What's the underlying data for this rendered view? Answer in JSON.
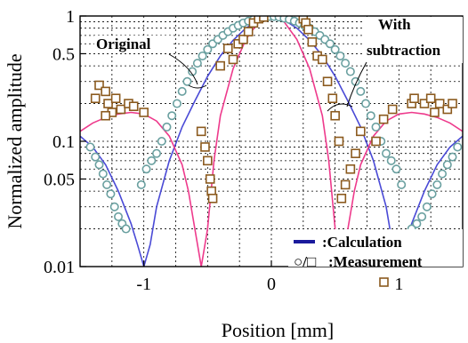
{
  "chart_data": {
    "type": "line",
    "xlabel": "Position [mm]",
    "ylabel": "Normalized amplitude",
    "xlim": [
      -1.5,
      1.5
    ],
    "ylim": [
      0.01,
      1
    ],
    "yscale": "log",
    "grid": true,
    "x_ticks": [
      {
        "value": -1,
        "label": "-1"
      },
      {
        "value": 0,
        "label": "0"
      },
      {
        "value": 1,
        "label": "1"
      }
    ],
    "y_ticks": [
      {
        "value": 1,
        "label": "1"
      },
      {
        "value": 0.5,
        "label": "0.5"
      },
      {
        "value": 0.1,
        "label": "0.1"
      },
      {
        "value": 0.05,
        "label": "0.05"
      },
      {
        "value": 0.01,
        "label": "0.01"
      }
    ],
    "annotations": {
      "original": "Original",
      "with_line1": "With",
      "with_line2": "subtraction"
    },
    "legend": {
      "calculation_label": ":Calculation",
      "measurement_symbols": "○/□",
      "measurement_label": ":Measurement",
      "placement": "bottom-right"
    },
    "colors": {
      "calculation": "#4a4ad6",
      "subtraction": "#ee3a8c",
      "circle_marker": "#6aa0a0",
      "square_marker": "#8b5a1e",
      "legend_line": "#1a1a9c"
    },
    "series": [
      {
        "key": "original_calc",
        "color": "#4a4ad6",
        "points": [
          [
            -1.5,
            0.11
          ],
          [
            -1.4,
            0.09
          ],
          [
            -1.3,
            0.065
          ],
          [
            -1.2,
            0.04
          ],
          [
            -1.1,
            0.022
          ],
          [
            -1.05,
            0.015
          ],
          [
            -1.0,
            0.01
          ],
          [
            -0.95,
            0.015
          ],
          [
            -0.9,
            0.03
          ],
          [
            -0.8,
            0.07
          ],
          [
            -0.7,
            0.13
          ],
          [
            -0.6,
            0.21
          ],
          [
            -0.5,
            0.33
          ],
          [
            -0.4,
            0.48
          ],
          [
            -0.3,
            0.64
          ],
          [
            -0.2,
            0.8
          ],
          [
            -0.1,
            0.93
          ],
          [
            0.0,
            1.0
          ],
          [
            0.1,
            0.93
          ],
          [
            0.2,
            0.8
          ],
          [
            0.3,
            0.64
          ],
          [
            0.4,
            0.48
          ],
          [
            0.5,
            0.33
          ],
          [
            0.6,
            0.21
          ],
          [
            0.7,
            0.13
          ],
          [
            0.8,
            0.07
          ],
          [
            0.9,
            0.03
          ],
          [
            0.95,
            0.015
          ],
          [
            1.0,
            0.01
          ],
          [
            1.05,
            0.015
          ],
          [
            1.1,
            0.022
          ],
          [
            1.2,
            0.04
          ],
          [
            1.3,
            0.065
          ],
          [
            1.4,
            0.09
          ],
          [
            1.5,
            0.11
          ]
        ]
      },
      {
        "key": "subtraction_calc",
        "color": "#ee3a8c",
        "points": [
          [
            -1.5,
            0.12
          ],
          [
            -1.4,
            0.14
          ],
          [
            -1.3,
            0.155
          ],
          [
            -1.2,
            0.165
          ],
          [
            -1.1,
            0.17
          ],
          [
            -1.0,
            0.165
          ],
          [
            -0.9,
            0.145
          ],
          [
            -0.8,
            0.11
          ],
          [
            -0.7,
            0.065
          ],
          [
            -0.65,
            0.04
          ],
          [
            -0.6,
            0.02
          ],
          [
            -0.55,
            0.01
          ],
          [
            -0.5,
            0.02
          ],
          [
            -0.45,
            0.07
          ],
          [
            -0.4,
            0.16
          ],
          [
            -0.3,
            0.38
          ],
          [
            -0.2,
            0.65
          ],
          [
            -0.1,
            0.9
          ],
          [
            0.0,
            1.0
          ],
          [
            0.1,
            0.9
          ],
          [
            0.2,
            0.65
          ],
          [
            0.3,
            0.38
          ],
          [
            0.4,
            0.16
          ],
          [
            0.45,
            0.07
          ],
          [
            0.5,
            0.02
          ],
          [
            0.55,
            0.01
          ],
          [
            0.6,
            0.02
          ],
          [
            0.65,
            0.04
          ],
          [
            0.7,
            0.065
          ],
          [
            0.8,
            0.11
          ],
          [
            0.9,
            0.145
          ],
          [
            1.0,
            0.165
          ],
          [
            1.1,
            0.17
          ],
          [
            1.2,
            0.165
          ],
          [
            1.3,
            0.155
          ],
          [
            1.4,
            0.14
          ],
          [
            1.5,
            0.12
          ]
        ]
      },
      {
        "key": "original_measurement",
        "marker": "circle",
        "color": "#6aa0a0",
        "points": [
          [
            -1.42,
            0.09
          ],
          [
            -1.38,
            0.075
          ],
          [
            -1.35,
            0.065
          ],
          [
            -1.32,
            0.055
          ],
          [
            -1.29,
            0.045
          ],
          [
            -1.26,
            0.038
          ],
          [
            -1.23,
            0.03
          ],
          [
            -1.2,
            0.025
          ],
          [
            -1.17,
            0.022
          ],
          [
            -1.14,
            0.02
          ],
          [
            -1.02,
            0.045
          ],
          [
            -0.98,
            0.06
          ],
          [
            -0.94,
            0.07
          ],
          [
            -0.9,
            0.08
          ],
          [
            -0.86,
            0.1
          ],
          [
            -0.82,
            0.13
          ],
          [
            -0.78,
            0.16
          ],
          [
            -0.74,
            0.2
          ],
          [
            -0.7,
            0.25
          ],
          [
            -0.66,
            0.3
          ],
          [
            -0.62,
            0.36
          ],
          [
            -0.58,
            0.42
          ],
          [
            -0.54,
            0.48
          ],
          [
            -0.5,
            0.54
          ],
          [
            -0.46,
            0.6
          ],
          [
            -0.42,
            0.65
          ],
          [
            -0.38,
            0.7
          ],
          [
            -0.34,
            0.75
          ],
          [
            -0.3,
            0.8
          ],
          [
            -0.26,
            0.84
          ],
          [
            -0.22,
            0.88
          ],
          [
            -0.18,
            0.91
          ],
          [
            -0.14,
            0.94
          ],
          [
            -0.1,
            0.96
          ],
          [
            -0.06,
            0.98
          ],
          [
            -0.02,
            0.99
          ],
          [
            0.02,
            0.99
          ],
          [
            0.06,
            0.98
          ],
          [
            0.1,
            0.96
          ],
          [
            0.14,
            0.94
          ],
          [
            0.18,
            0.91
          ],
          [
            0.22,
            0.88
          ],
          [
            0.26,
            0.84
          ],
          [
            0.3,
            0.8
          ],
          [
            0.34,
            0.75
          ],
          [
            0.38,
            0.7
          ],
          [
            0.42,
            0.65
          ],
          [
            0.46,
            0.6
          ],
          [
            0.5,
            0.54
          ],
          [
            0.54,
            0.48
          ],
          [
            0.58,
            0.42
          ],
          [
            0.62,
            0.36
          ],
          [
            0.66,
            0.3
          ],
          [
            0.7,
            0.25
          ],
          [
            0.74,
            0.2
          ],
          [
            0.78,
            0.16
          ],
          [
            0.82,
            0.13
          ],
          [
            0.86,
            0.1
          ],
          [
            0.9,
            0.08
          ],
          [
            0.94,
            0.07
          ],
          [
            0.98,
            0.06
          ],
          [
            1.02,
            0.045
          ],
          [
            1.1,
            0.02
          ],
          [
            1.14,
            0.022
          ],
          [
            1.18,
            0.025
          ],
          [
            1.22,
            0.03
          ],
          [
            1.26,
            0.038
          ],
          [
            1.3,
            0.045
          ],
          [
            1.34,
            0.055
          ],
          [
            1.38,
            0.065
          ],
          [
            1.42,
            0.075
          ],
          [
            1.46,
            0.09
          ]
        ]
      },
      {
        "key": "subtraction_measurement",
        "marker": "square",
        "color": "#8b5a1e",
        "points": [
          [
            -1.35,
            0.28
          ],
          [
            -1.3,
            0.25
          ],
          [
            -1.38,
            0.22
          ],
          [
            -1.28,
            0.2
          ],
          [
            -1.22,
            0.22
          ],
          [
            -1.18,
            0.18
          ],
          [
            -1.12,
            0.2
          ],
          [
            -1.08,
            0.19
          ],
          [
            -1.25,
            0.17
          ],
          [
            -1.3,
            0.16
          ],
          [
            -1.0,
            0.17
          ],
          [
            -0.55,
            0.12
          ],
          [
            -0.52,
            0.09
          ],
          [
            -0.5,
            0.07
          ],
          [
            -0.48,
            0.05
          ],
          [
            -0.47,
            0.04
          ],
          [
            -0.46,
            0.035
          ],
          [
            -0.4,
            0.4
          ],
          [
            -0.34,
            0.55
          ],
          [
            -0.3,
            0.45
          ],
          [
            -0.26,
            0.6
          ],
          [
            -0.22,
            0.65
          ],
          [
            -0.18,
            0.75
          ],
          [
            -0.14,
            0.88
          ],
          [
            -0.1,
            0.95
          ],
          [
            -0.06,
            0.98
          ],
          [
            0.25,
            0.95
          ],
          [
            0.27,
            0.88
          ],
          [
            0.29,
            0.78
          ],
          [
            0.32,
            0.62
          ],
          [
            0.36,
            0.48
          ],
          [
            0.4,
            0.45
          ],
          [
            0.44,
            0.3
          ],
          [
            0.48,
            0.22
          ],
          [
            0.5,
            0.16
          ],
          [
            0.53,
            0.1
          ],
          [
            0.55,
            0.035
          ],
          [
            0.58,
            0.045
          ],
          [
            0.62,
            0.06
          ],
          [
            0.66,
            0.08
          ],
          [
            0.7,
            0.12
          ],
          [
            0.82,
            0.1
          ],
          [
            0.88,
            0.15
          ],
          [
            0.95,
            0.18
          ],
          [
            1.1,
            0.2
          ],
          [
            1.12,
            0.22
          ],
          [
            1.2,
            0.2
          ],
          [
            1.25,
            0.22
          ],
          [
            1.28,
            0.17
          ],
          [
            1.32,
            0.2
          ],
          [
            1.38,
            0.18
          ],
          [
            1.42,
            0.2
          ],
          [
            0.8,
            0.012
          ]
        ]
      }
    ]
  }
}
